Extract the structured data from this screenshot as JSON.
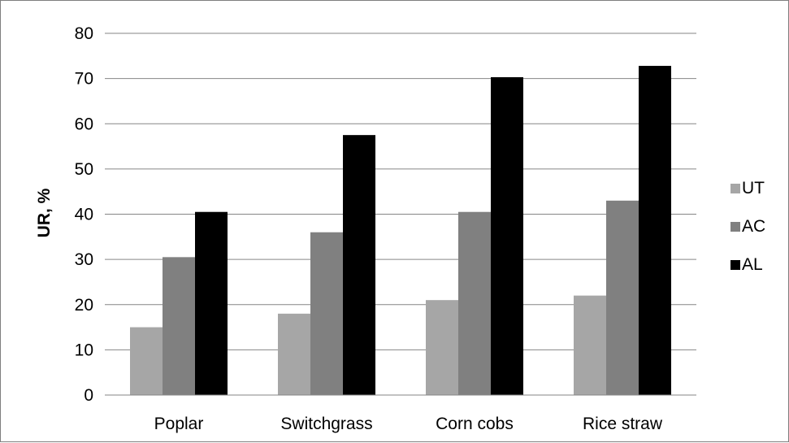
{
  "chart_data": {
    "type": "bar",
    "title": "",
    "xlabel": "",
    "ylabel": "UR, %",
    "ylim": [
      0,
      80
    ],
    "yticks": [
      0,
      10,
      20,
      30,
      40,
      50,
      60,
      70,
      80
    ],
    "grid": true,
    "legend_position": "right",
    "categories": [
      "Poplar",
      "Switchgrass",
      "Corn cobs",
      "Rice straw"
    ],
    "series": [
      {
        "name": "UT",
        "color": "#a6a6a6",
        "values": [
          15,
          18,
          21,
          22
        ]
      },
      {
        "name": "AC",
        "color": "#808080",
        "values": [
          30.5,
          36,
          40.5,
          43
        ]
      },
      {
        "name": "AL",
        "color": "#000000",
        "values": [
          40.5,
          57.5,
          70.3,
          72.8
        ]
      }
    ]
  }
}
